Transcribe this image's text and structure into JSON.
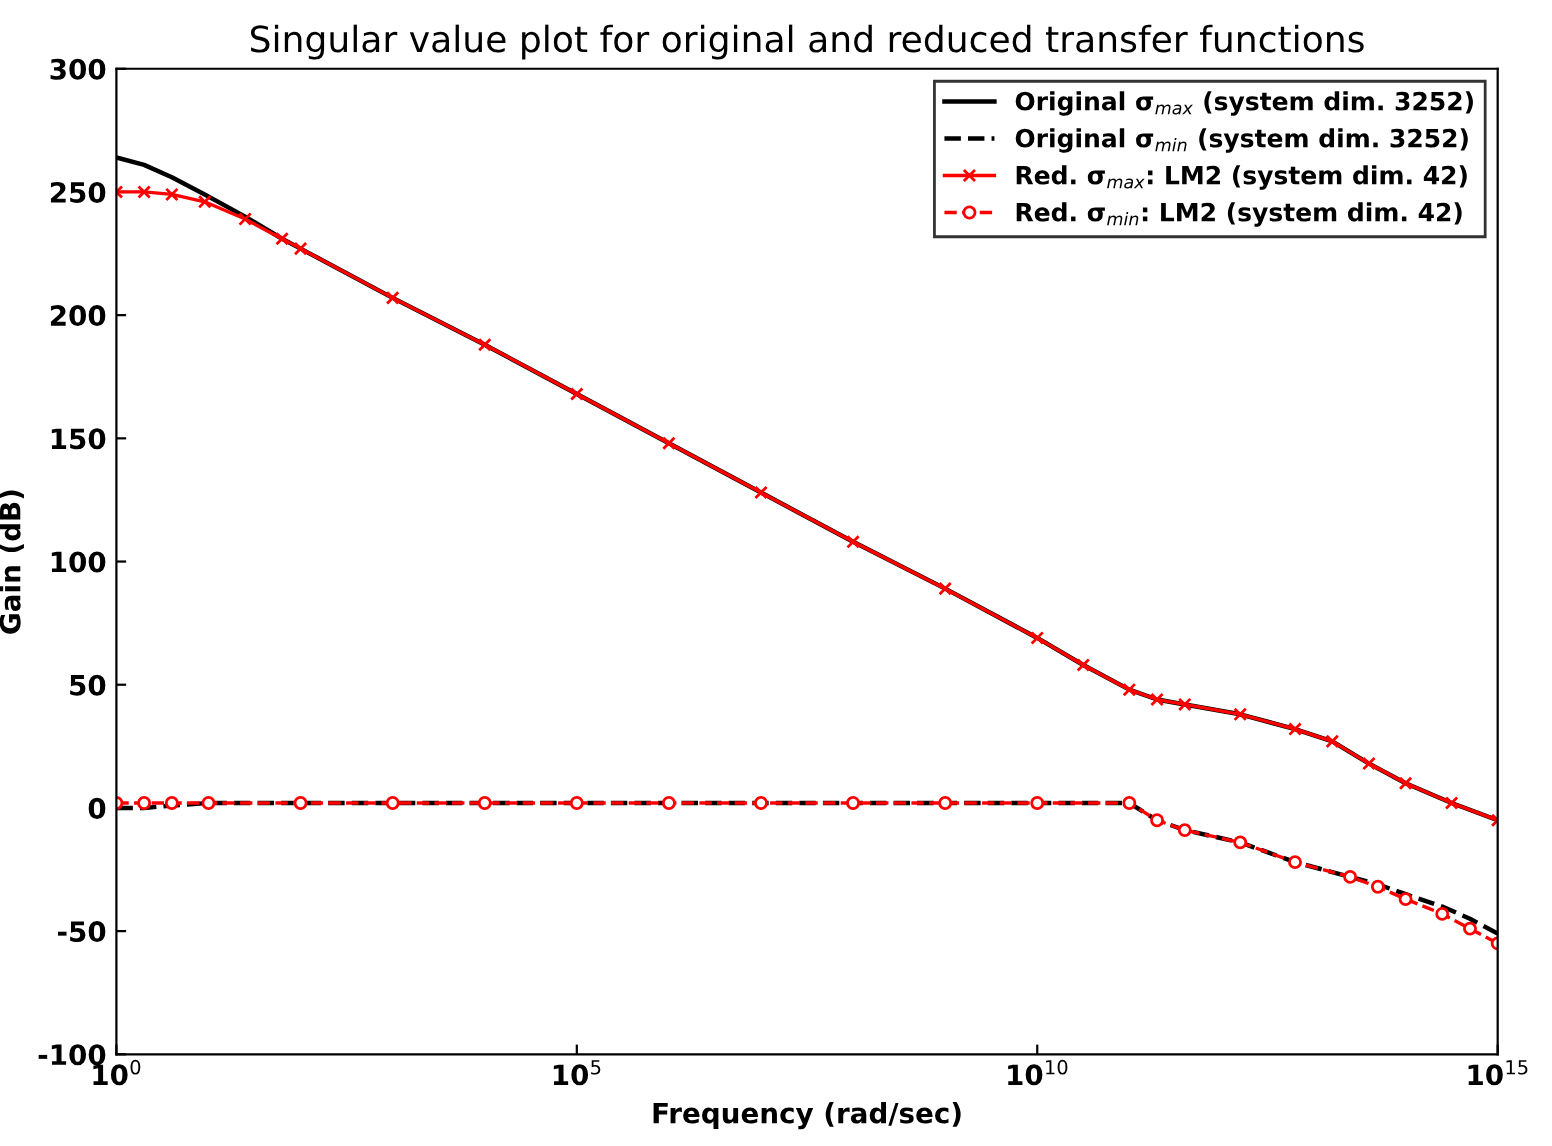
{
  "chart_data": {
    "type": "line",
    "title": "Singular value plot for original and reduced transfer functions",
    "xlabel": "Frequency (rad/sec)",
    "ylabel": "Gain (dB)",
    "log": "x",
    "xlim": [
      1,
      1000000000000000.0
    ],
    "xticks": [
      {
        "value": 1,
        "label": "10$^{0}$"
      },
      {
        "value": 100000.0,
        "label": "10$^{5}$"
      },
      {
        "value": 10000000000.0,
        "label": "10$^{10}$"
      },
      {
        "value": 1000000000000000.0,
        "label": "10$^{15}$"
      }
    ],
    "ylim": [
      -100,
      300
    ],
    "yticks": [
      -100,
      -50,
      0,
      50,
      100,
      150,
      200,
      250,
      300
    ],
    "grid": false,
    "legend": "top right",
    "series": [
      {
        "name": "Original σ$_{max}$ (system dim. 3252)",
        "color": "#000000",
        "line_style": "solid",
        "marker": "none",
        "x": [
          1,
          2,
          4,
          9.1,
          25,
          63,
          100,
          1000.0,
          10000.0,
          100000.0,
          1000000.0,
          10000000.0,
          100000000.0,
          1000000000.0,
          10000000000.0,
          31600000000.0,
          100000000000.0,
          200000000000.0,
          400000000000.0,
          1600000000000.0,
          6300000000000.0,
          16000000000000.0,
          40000000000000.0,
          100000000000000.0,
          316000000000000.0,
          1000000000000000.0
        ],
        "values": [
          264,
          261,
          256,
          249,
          240,
          231,
          227,
          207,
          188,
          168,
          148,
          128,
          108,
          89,
          69,
          58,
          48,
          44,
          42,
          38,
          32,
          27,
          18,
          10,
          2,
          -5
        ]
      },
      {
        "name": "Original σ$_{min}$ (system dim. 3252)",
        "color": "#000000",
        "line_style": "dashed",
        "marker": "none",
        "x": [
          1,
          2,
          4,
          10,
          100,
          1000.0,
          10000.0,
          100000.0,
          1000000.0,
          10000000.0,
          100000000.0,
          1000000000.0,
          10000000000.0,
          100000000000.0,
          200000000000.0,
          400000000000.0,
          1600000000000.0,
          6300000000000.0,
          25000000000000.0,
          50000000000000.0,
          100000000000000.0,
          250000000000000.0,
          500000000000000.0,
          1000000000000000.0
        ],
        "values": [
          0,
          0,
          1,
          2,
          2,
          2,
          2,
          2,
          2,
          2,
          2,
          2,
          2,
          2,
          -5,
          -9,
          -14,
          -22,
          -28,
          -31,
          -35,
          -40,
          -45,
          -51
        ]
      },
      {
        "name": "Red. σ$_{max}$: LM2 (system dim. 42)",
        "color": "#ff0000",
        "line_style": "solid",
        "marker": "cross",
        "x": [
          1,
          2,
          4,
          9.1,
          25,
          63,
          100,
          1000.0,
          10000.0,
          100000.0,
          1000000.0,
          10000000.0,
          100000000.0,
          1000000000.0,
          10000000000.0,
          31600000000.0,
          100000000000.0,
          200000000000.0,
          400000000000.0,
          1600000000000.0,
          6300000000000.0,
          16000000000000.0,
          40000000000000.0,
          100000000000000.0,
          316000000000000.0,
          1000000000000000.0
        ],
        "values": [
          250,
          250,
          249,
          246,
          239,
          231,
          227,
          207,
          188,
          168,
          148,
          128,
          108,
          89,
          69,
          58,
          48,
          44,
          42,
          38,
          32,
          27,
          18,
          10,
          2,
          -5
        ]
      },
      {
        "name": "Red. σ$_{min}$: LM2 (system dim. 42)",
        "color": "#ff0000",
        "line_style": "dashed",
        "marker": "circle",
        "x": [
          1,
          2,
          4,
          10,
          100,
          1000.0,
          10000.0,
          100000.0,
          1000000.0,
          10000000.0,
          100000000.0,
          1000000000.0,
          10000000000.0,
          100000000000.0,
          200000000000.0,
          400000000000.0,
          1600000000000.0,
          6300000000000.0,
          25000000000000.0,
          50000000000000.0,
          100000000000000.0,
          250000000000000.0,
          500000000000000.0,
          1000000000000000.0
        ],
        "values": [
          2,
          2,
          2,
          2,
          2,
          2,
          2,
          2,
          2,
          2,
          2,
          2,
          2,
          2,
          -5,
          -9,
          -14,
          -22,
          -28,
          -32,
          -37,
          -43,
          -49,
          -55
        ]
      }
    ]
  }
}
